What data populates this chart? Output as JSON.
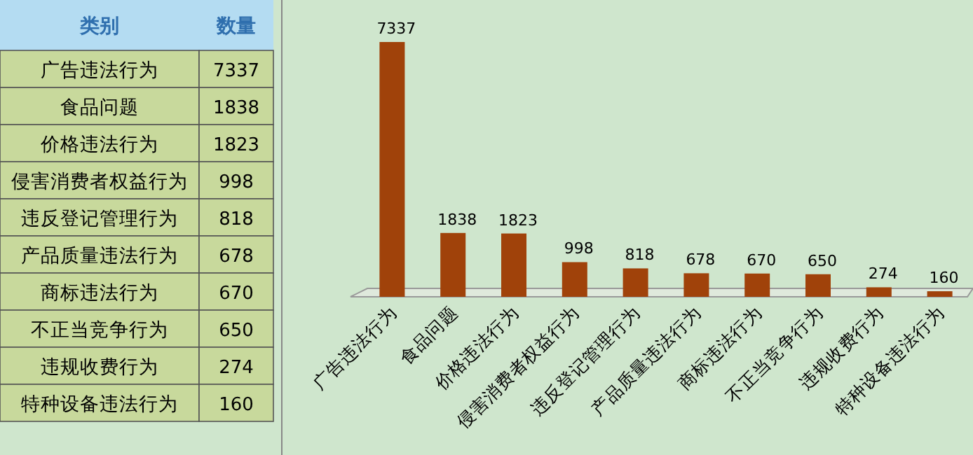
{
  "chart_data": [
    {
      "type": "other",
      "annotations": [
        "类别",
        "数量"
      ],
      "categories": [
        "广告违法行为",
        "食品问题",
        "价格违法行为",
        "侵害消费者权益行为",
        "违反登记管理行为",
        "产品质量违法行为",
        "商标违法行为",
        "不正当竞争行为",
        "违规收费行为",
        "特种设备违法行为"
      ],
      "values": [
        7337,
        1838,
        1823,
        998,
        818,
        678,
        670,
        650,
        274,
        160
      ],
      "data_labels": true
    },
    {
      "type": "bar",
      "categories": [
        "广告违法行为",
        "食品问题",
        "价格违法行为",
        "侵害消费者权益行为",
        "违反登记管理行为",
        "产品质量违法行为",
        "商标违法行为",
        "不正当竞争行为",
        "违规收费行为",
        "特种设备违法行为"
      ],
      "values": [
        7337,
        1838,
        1823,
        998,
        818,
        678,
        670,
        650,
        274,
        160
      ],
      "color": "#a0420a",
      "data_labels": true
    }
  ]
}
